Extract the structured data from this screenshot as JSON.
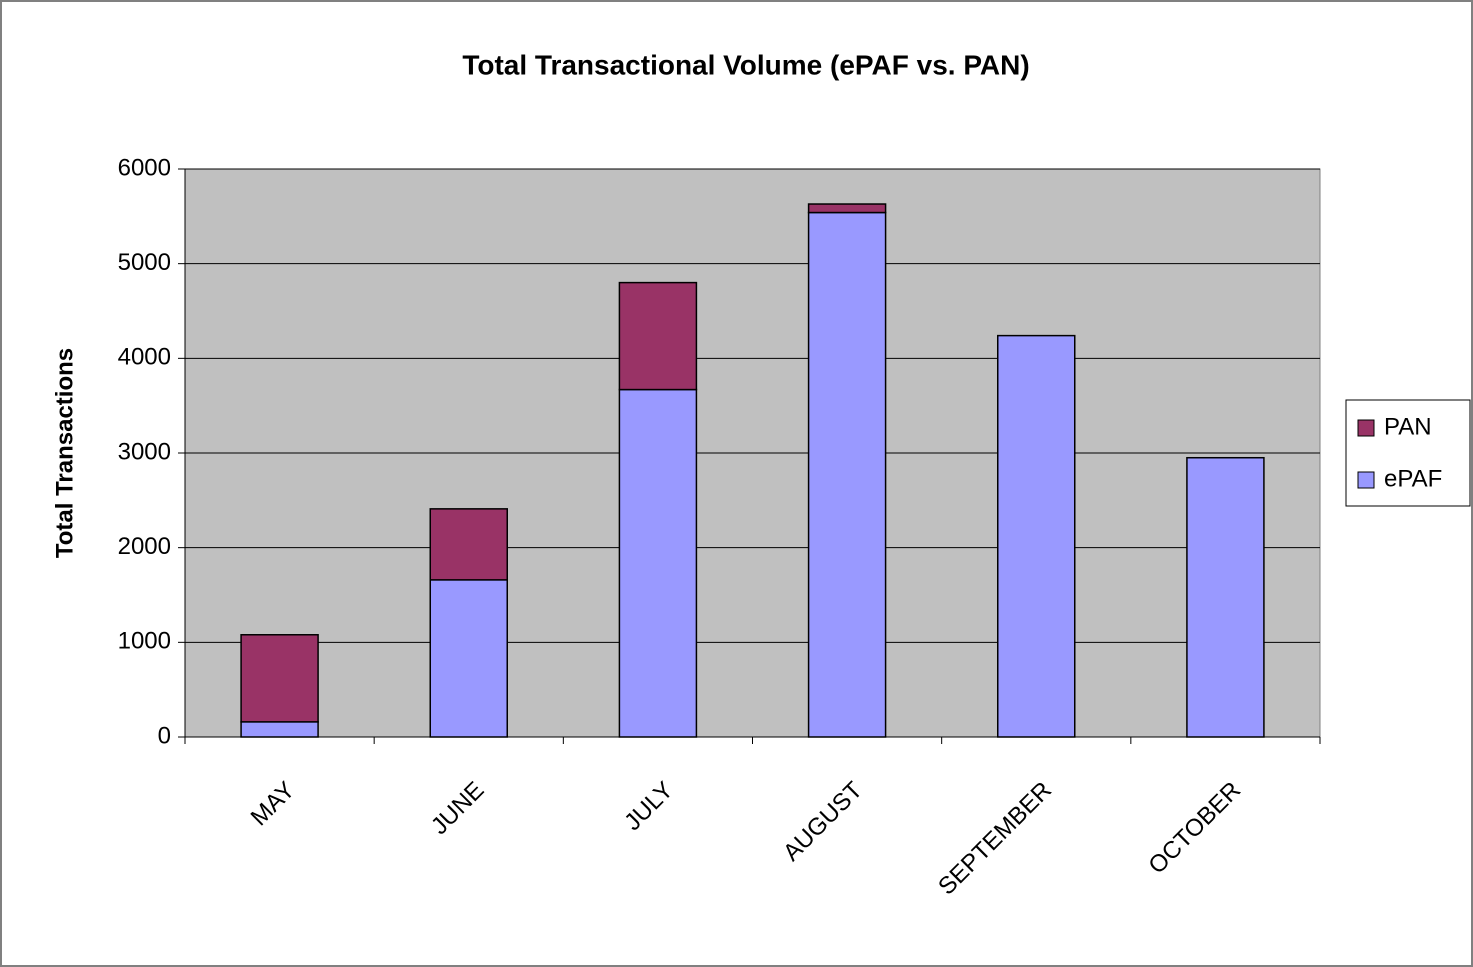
{
  "chart_data": {
    "type": "stacked-bar",
    "title": "Total Transactional Volume (ePAF vs. PAN)",
    "y_label": "Total Transactions",
    "categories": [
      "MAY",
      "JUNE",
      "JULY",
      "AUGUST",
      "SEPTEMBER",
      "OCTOBER"
    ],
    "series": [
      {
        "name": "ePAF",
        "color": "#9999ff",
        "values": [
          160,
          1660,
          3670,
          5540,
          4240,
          2950
        ]
      },
      {
        "name": "PAN",
        "color": "#993366",
        "values": [
          920,
          750,
          1130,
          90,
          0,
          0
        ]
      }
    ],
    "ylim": [
      0,
      6000
    ],
    "yticks": [
      0,
      1000,
      2000,
      3000,
      4000,
      5000,
      6000
    ],
    "grid": true,
    "legend": "right"
  }
}
